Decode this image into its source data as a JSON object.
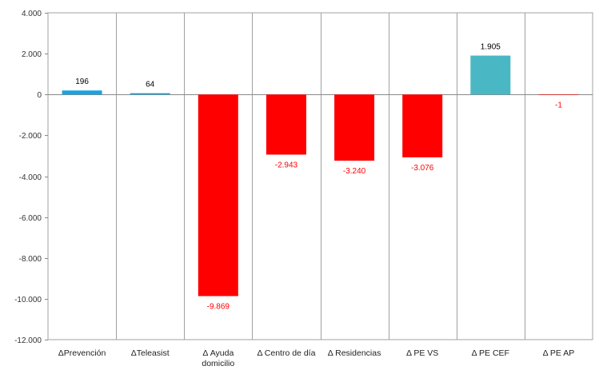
{
  "chart_data": {
    "type": "bar",
    "categories": [
      [
        "ΔPrevención"
      ],
      [
        "ΔTeleasist"
      ],
      [
        "Δ Ayuda",
        "domicilio"
      ],
      [
        "Δ Centro de día"
      ],
      [
        "Δ Residencias"
      ],
      [
        "Δ PE VS"
      ],
      [
        "Δ PE CEF"
      ],
      [
        "Δ PE AP"
      ]
    ],
    "values": [
      196,
      64,
      -9869,
      -2943,
      -3240,
      -3076,
      1905,
      -1
    ],
    "value_labels": [
      "196",
      "64",
      "-9.869",
      "-2.943",
      "-3.240",
      "-3.076",
      "1.905",
      "-1"
    ],
    "bar_colors": [
      "#1aa3e0",
      "#1aa3e0",
      "#ff0000",
      "#ff0000",
      "#ff0000",
      "#ff0000",
      "#4ab7c5",
      "#ff0000"
    ],
    "label_colors": [
      "#000000",
      "#000000",
      "#ff0000",
      "#ff0000",
      "#ff0000",
      "#ff0000",
      "#000000",
      "#ff0000"
    ],
    "y_ticks": [
      4000,
      2000,
      0,
      -2000,
      -4000,
      -6000,
      -8000,
      -10000,
      -12000
    ],
    "y_tick_labels": [
      "4.000",
      "2.000",
      "0",
      "-2.000",
      "-4.000",
      "-6.000",
      "-8.000",
      "-10.000",
      "-12.000"
    ],
    "ylim": [
      -12000,
      4000
    ],
    "title": "",
    "xlabel": "",
    "ylabel": "",
    "grid": "vertical-category-lines",
    "legend": "none",
    "colors": {
      "axis": "#888888",
      "grid": "#a0a0a0"
    }
  }
}
